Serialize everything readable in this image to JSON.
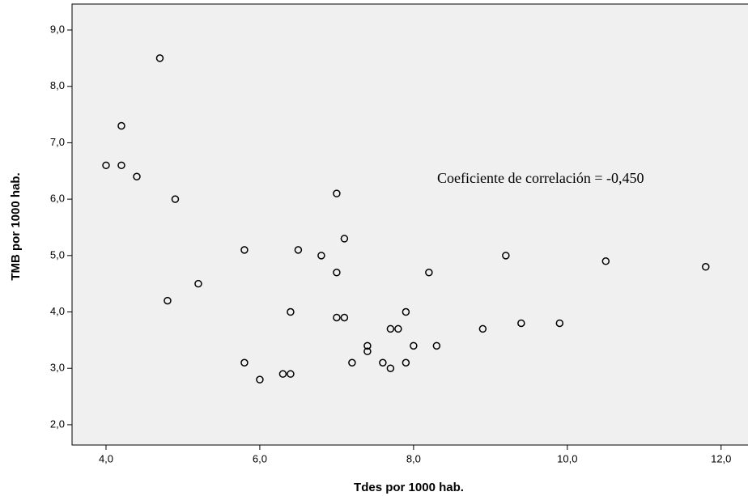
{
  "chart_data": {
    "type": "scatter",
    "x_label": "Tdes por 1000 hab.",
    "y_label": "TMB por 1000 hab.",
    "annotation": "Coeficiente de correlación = -0,450",
    "color": "#000000",
    "background": "#f0f0f0",
    "x": [
      4.0,
      4.2,
      4.2,
      4.4,
      4.7,
      4.8,
      4.9,
      5.2,
      5.8,
      5.8,
      6.0,
      6.3,
      6.4,
      6.4,
      6.5,
      6.8,
      7.0,
      7.0,
      7.0,
      7.1,
      7.1,
      7.2,
      7.4,
      7.4,
      7.6,
      7.7,
      7.7,
      7.8,
      7.9,
      7.9,
      8.0,
      8.2,
      8.3,
      8.9,
      9.2,
      9.4,
      9.9,
      10.5,
      11.8
    ],
    "values": [
      6.6,
      7.3,
      6.6,
      6.4,
      8.5,
      4.2,
      6.0,
      4.5,
      5.1,
      3.1,
      2.8,
      2.9,
      2.9,
      4.0,
      5.1,
      5.0,
      6.1,
      4.7,
      3.9,
      3.9,
      5.3,
      3.1,
      3.4,
      3.3,
      3.1,
      3.7,
      3.0,
      3.7,
      4.0,
      3.1,
      3.4,
      4.7,
      3.4,
      3.7,
      5.0,
      3.8,
      3.8,
      4.9,
      4.8
    ],
    "xlim": [
      3.558,
      12.35
    ],
    "ylim": [
      1.64,
      9.46
    ],
    "xticks": [
      {
        "value": 4,
        "label": "4,0"
      },
      {
        "value": 6,
        "label": "6,0"
      },
      {
        "value": 8,
        "label": "8,0"
      },
      {
        "value": 10,
        "label": "10,0"
      },
      {
        "value": 12,
        "label": "12,0"
      }
    ],
    "yticks": [
      {
        "value": 2,
        "label": "2,0"
      },
      {
        "value": 3,
        "label": "3,0"
      },
      {
        "value": 4,
        "label": "4,0"
      },
      {
        "value": 5,
        "label": "5,0"
      },
      {
        "value": 6,
        "label": "6,0"
      },
      {
        "value": 7,
        "label": "7,0"
      },
      {
        "value": 8,
        "label": "8,0"
      },
      {
        "value": 9,
        "label": "9,0"
      }
    ]
  }
}
